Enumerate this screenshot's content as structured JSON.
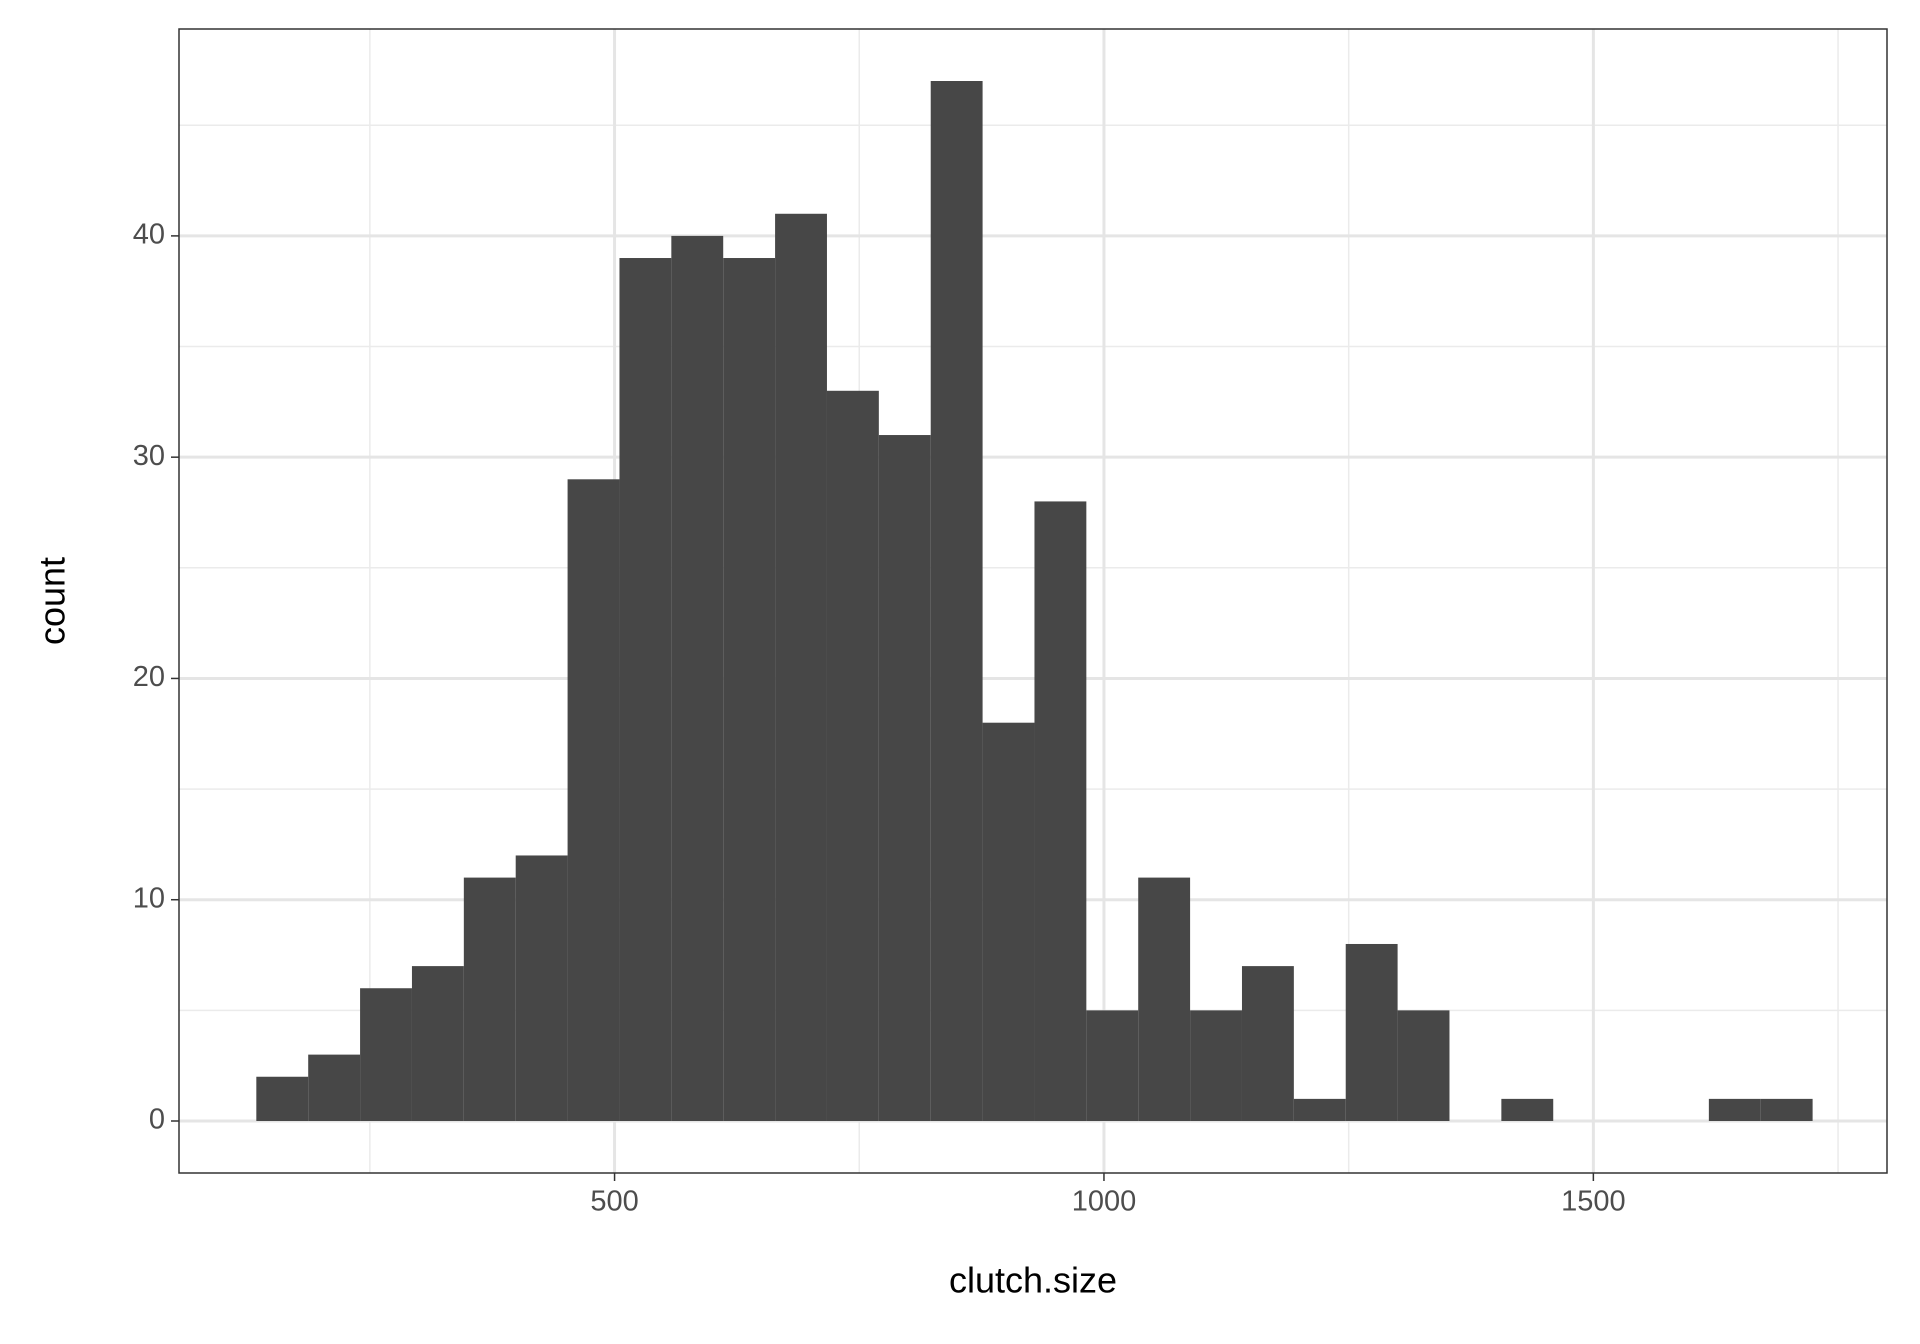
{
  "chart_data": {
    "type": "histogram",
    "x_label": "clutch.size",
    "y_label": "count",
    "bins": [
      134,
      187,
      240,
      293,
      346,
      399,
      452,
      505,
      558,
      611,
      664,
      717,
      770,
      823,
      876,
      929,
      982,
      1035,
      1088,
      1141,
      1194,
      1247,
      1300,
      1353,
      1406,
      1459,
      1512,
      1565,
      1618,
      1671,
      1724
    ],
    "values": [
      2,
      3,
      6,
      7,
      11,
      12,
      29,
      39,
      40,
      39,
      41,
      33,
      31,
      47,
      18,
      28,
      5,
      11,
      5,
      7,
      1,
      8,
      5,
      0,
      1,
      0,
      0,
      0,
      1,
      1
    ],
    "color": "#474747",
    "xlim": [
      55,
      1800
    ],
    "xticks": [
      500,
      1000,
      1500
    ],
    "ylim": [
      -2.35,
      49.35
    ],
    "yticks": [
      0,
      10,
      20,
      30,
      40
    ],
    "x_minor_grid": [
      250,
      750,
      1250,
      1750
    ],
    "y_minor_grid": [
      5,
      15,
      25,
      35,
      45
    ],
    "grid": true
  }
}
